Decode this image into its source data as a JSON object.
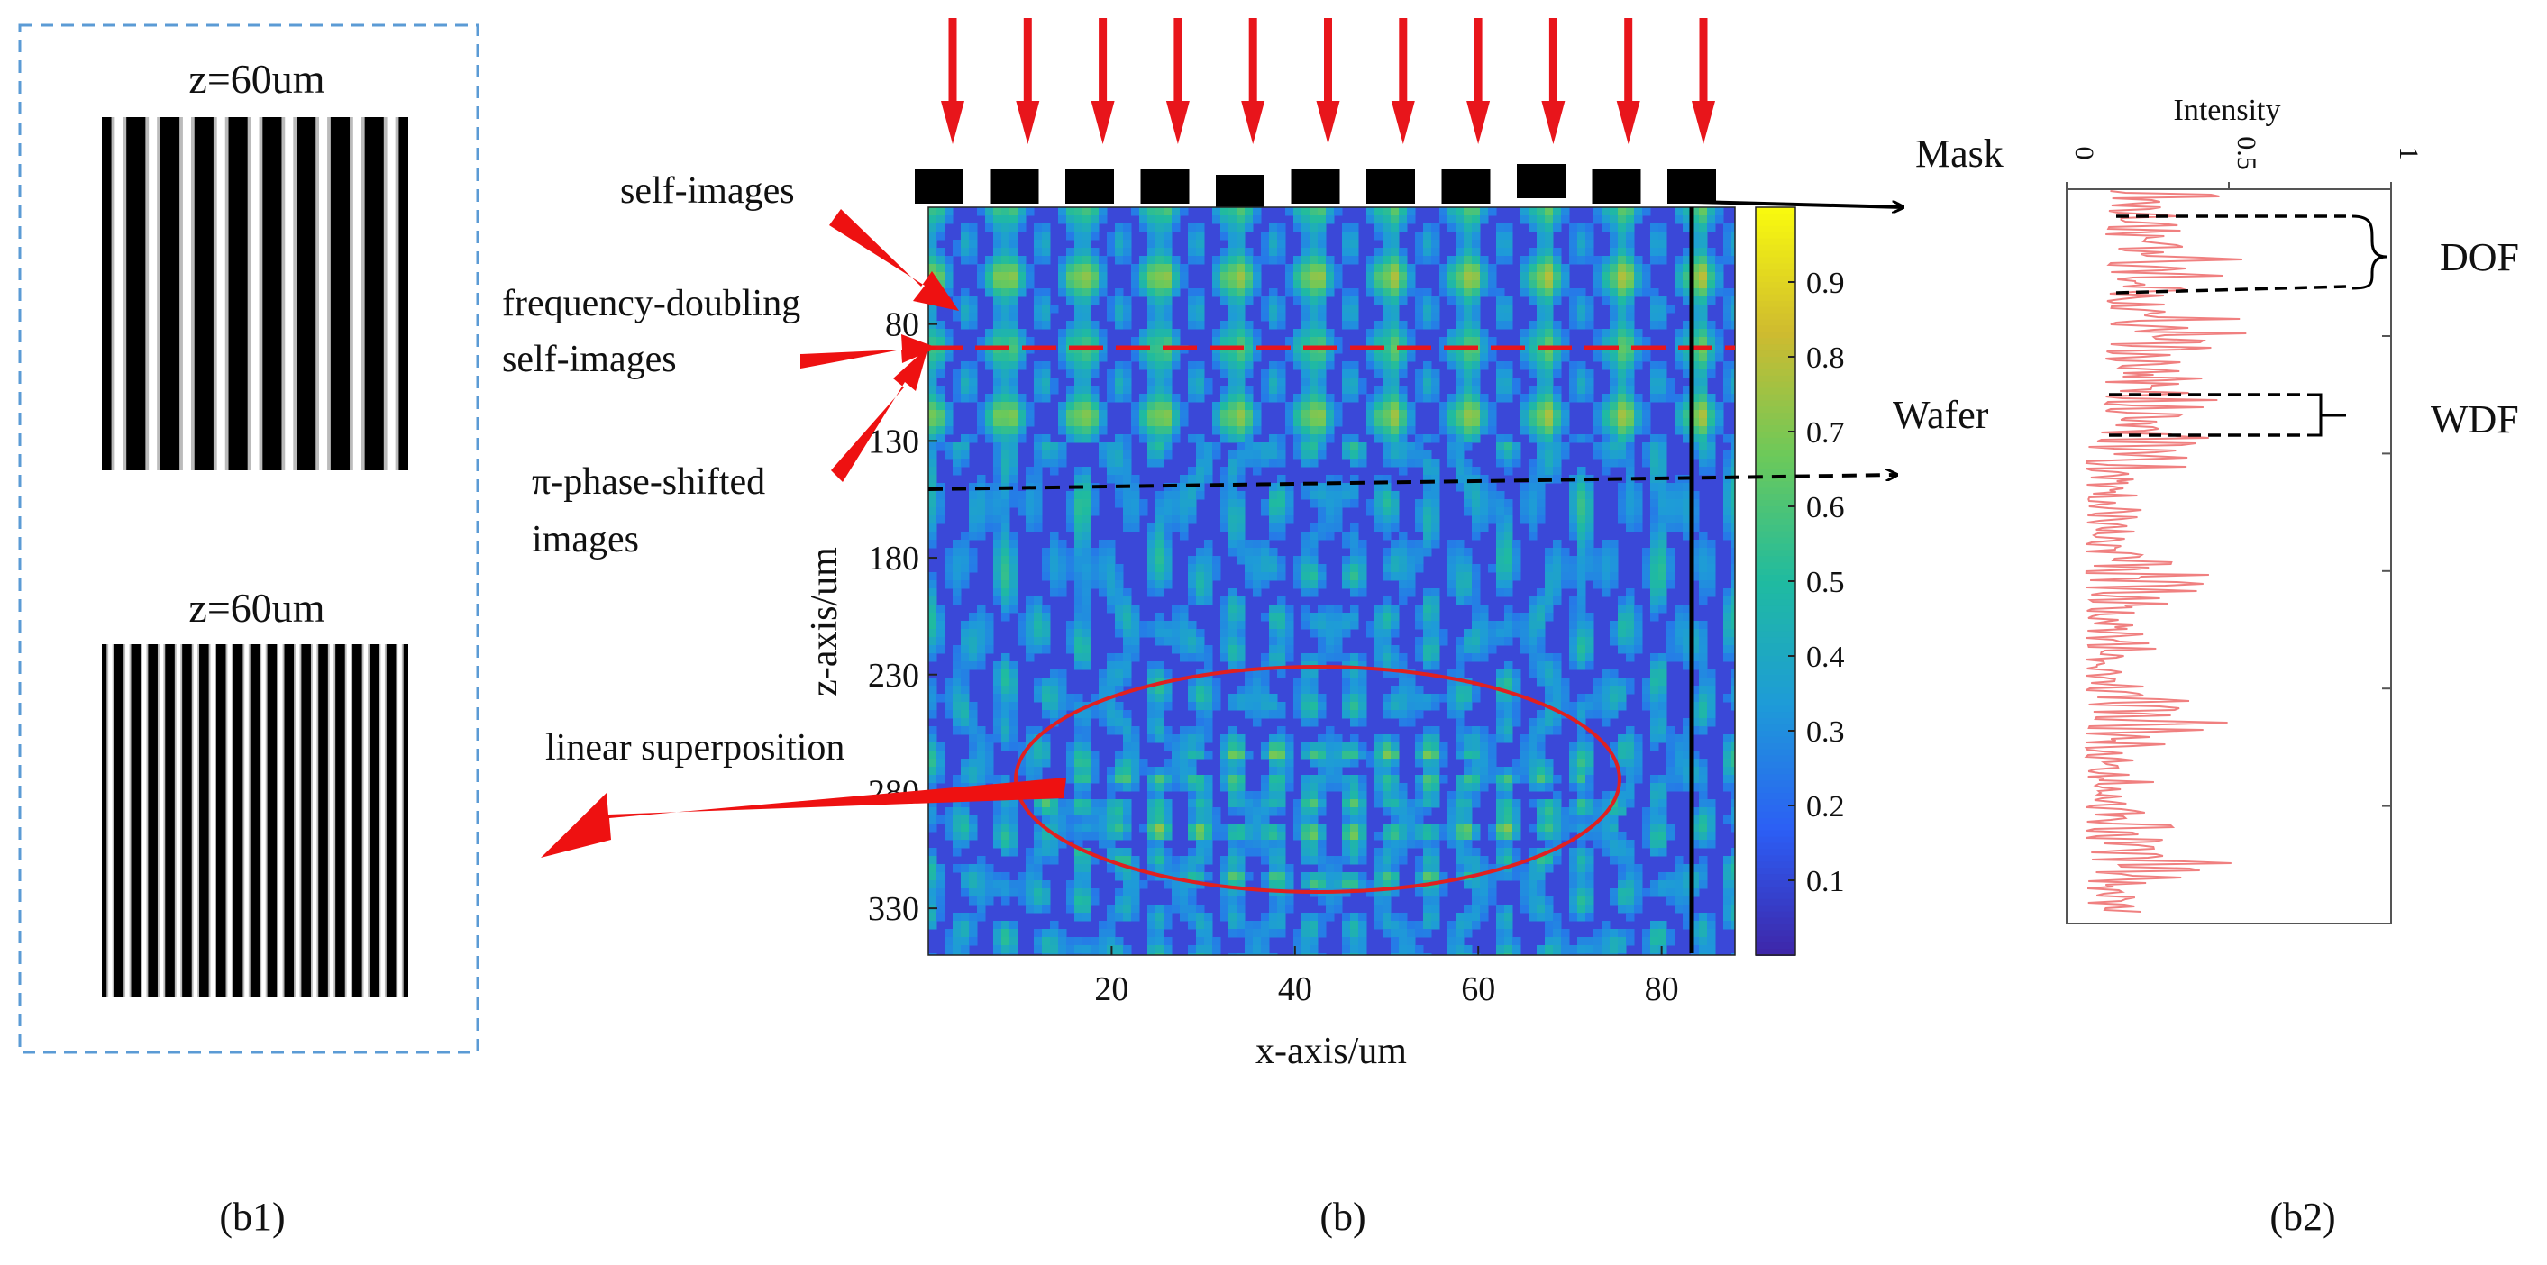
{
  "panels": {
    "b1": {
      "caption": "(b1)",
      "top_label": "z=60um",
      "bottom_label": "z=60um",
      "top_grating_periods": 9,
      "bottom_grating_periods": 18
    },
    "b": {
      "caption": "(b)",
      "mask_label": "Mask",
      "wafer_label": "Wafer",
      "ann_self_images": "self-images",
      "ann_freq_line1": "frequency-doubling",
      "ann_freq_line2": "self-images",
      "ann_pi_line1": "π-phase-shifted",
      "ann_pi_line2": "images",
      "ann_linear": "linear superposition",
      "mask_block_count": 11,
      "incident_arrow_count": 11
    },
    "b2": {
      "caption": "(b2)",
      "intensity_label": "Intensity",
      "dof_label": "DOF",
      "wdf_label": "WDF"
    }
  },
  "chart_data": [
    {
      "type": "heatmap",
      "xlabel": "x-axis/um",
      "ylabel": "z-axis/um",
      "x_ticks": [
        20,
        40,
        60,
        80
      ],
      "x_tick_labels": [
        "20",
        "40",
        "60",
        "80"
      ],
      "y_ticks": [
        80,
        130,
        180,
        230,
        280,
        330
      ],
      "y_tick_labels": [
        "80",
        "130",
        "180",
        "230",
        "280",
        "330"
      ],
      "xlim": [
        0,
        88
      ],
      "ylim": [
        30,
        350
      ],
      "colorbar_ticks": [
        0.1,
        0.2,
        0.3,
        0.4,
        0.5,
        0.6,
        0.7,
        0.8,
        0.9
      ],
      "colorbar_tick_labels": [
        "0.1",
        "0.2",
        "0.3",
        "0.4",
        "0.5",
        "0.6",
        "0.7",
        "0.8",
        "0.9"
      ],
      "colorbar_range": [
        0,
        1
      ],
      "colormap": [
        "#3e26a8",
        "#2c5ef5",
        "#1e9bd8",
        "#1fbba0",
        "#6cc95a",
        "#cfbb2f",
        "#f9fb0e"
      ],
      "wafer_z": 130,
      "frequency_doubling_z": 90,
      "profile_x": 84,
      "ellipse_center": [
        43,
        290
      ],
      "ellipse_radius": [
        33,
        30
      ]
    },
    {
      "type": "line",
      "xlabel": "Intensity",
      "x_ticks": [
        0,
        0.5,
        1
      ],
      "x_tick_labels": [
        "0",
        "0.5",
        "1"
      ],
      "xlim": [
        0,
        1
      ],
      "ylim": [
        30,
        350
      ],
      "line_color": "#f08080"
    }
  ]
}
